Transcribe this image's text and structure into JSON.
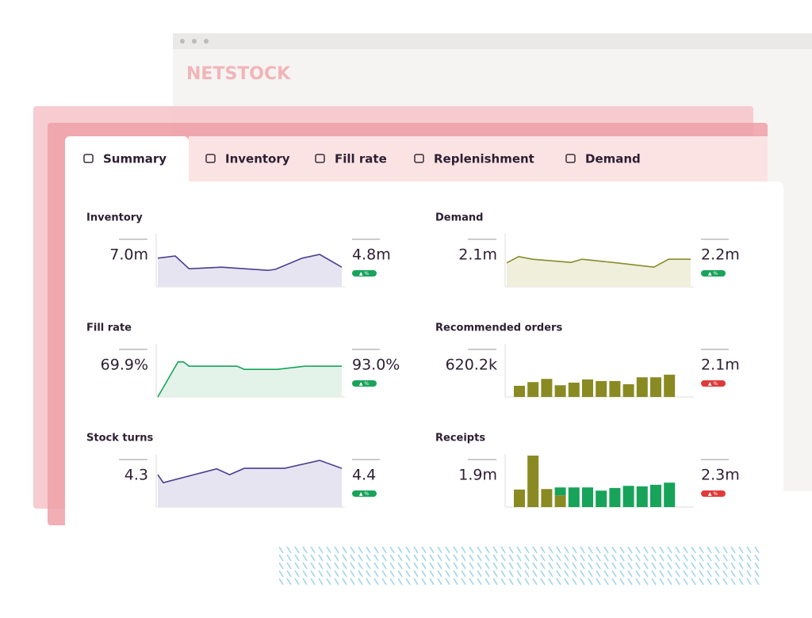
{
  "brand": "NETSTOCK",
  "tabs": [
    "Summary",
    "Inventory",
    "Fill rate",
    "Replenishment",
    "Demand"
  ],
  "cards": [
    {
      "title": "Inventory",
      "start": "7.0m",
      "end": "4.8m",
      "badge": "▲ %",
      "badge_color": "#1aa35a",
      "chart": {
        "type": "line",
        "color": "#4a3f8f",
        "fill": "#e6e4f1",
        "xlim": [
          0,
          100
        ],
        "ylim": [
          0,
          100
        ],
        "x": [
          0,
          9.5,
          17,
          34.5,
          60,
          64,
          78.5,
          88,
          100
        ],
        "values": [
          54,
          58,
          34,
          37,
          31,
          33,
          54,
          61,
          37
        ]
      }
    },
    {
      "title": "Demand",
      "start": "2.1m",
      "end": "2.2m",
      "badge": "▲ %",
      "badge_color": "#1aa35a",
      "chart": {
        "type": "line",
        "color": "#8a8a2a",
        "fill": "#efefdc",
        "xlim": [
          0,
          100
        ],
        "ylim": [
          0,
          100
        ],
        "x": [
          0,
          6.5,
          14,
          35,
          41,
          60,
          80,
          88,
          100
        ],
        "values": [
          45,
          57,
          52,
          46,
          52,
          45,
          37,
          52,
          52
        ]
      }
    },
    {
      "title": "Fill rate",
      "start": "69.9%",
      "end": "93.0%",
      "badge": "▲ %",
      "badge_color": "#1aa35a",
      "chart": {
        "type": "line",
        "color": "#17a35a",
        "fill": "#e3f3ea",
        "xlim": [
          0,
          100
        ],
        "ylim": [
          0,
          100
        ],
        "x": [
          0,
          11,
          14,
          17,
          43,
          47,
          65,
          80,
          100
        ],
        "values": [
          0,
          66,
          66,
          58,
          58,
          52,
          52,
          58,
          58
        ]
      }
    },
    {
      "title": "Recommended orders",
      "start": "620.2k",
      "end": "2.1m",
      "badge": "▲ %",
      "badge_color": "#e03a3a",
      "chart": {
        "type": "bar",
        "ylim": [
          0,
          100
        ],
        "series": [
          {
            "color": "#8a8a23",
            "values": [
              21,
              28,
              34,
              22,
              27,
              33,
              30,
              30,
              24,
              37,
              37,
              42
            ]
          }
        ]
      }
    },
    {
      "title": "Stock turns",
      "start": "4.3",
      "end": "4.4",
      "badge": "▲ %",
      "badge_color": "#1aa35a",
      "chart": {
        "type": "line",
        "color": "#4a3f8f",
        "fill": "#e6e4f1",
        "xlim": [
          0,
          100
        ],
        "ylim": [
          0,
          100
        ],
        "x": [
          0,
          3,
          32,
          39,
          47,
          69,
          88,
          100
        ],
        "values": [
          61,
          46,
          72,
          61,
          73,
          73,
          88,
          73
        ]
      }
    },
    {
      "title": "Receipts",
      "start": "1.9m",
      "end": "2.3m",
      "badge": "▲ %",
      "badge_color": "#e03a3a",
      "chart": {
        "type": "bar",
        "ylim": [
          0,
          100
        ],
        "series": [
          {
            "color": "#8a8a23",
            "values": [
              33,
              97,
              34,
              22,
              0,
              0,
              0,
              0,
              0,
              0,
              0,
              0
            ]
          },
          {
            "color": "#17a35a",
            "values": [
              0,
              0,
              0,
              15,
              37,
              37,
              31,
              36,
              40,
              39,
              42,
              46
            ]
          }
        ]
      }
    }
  ]
}
